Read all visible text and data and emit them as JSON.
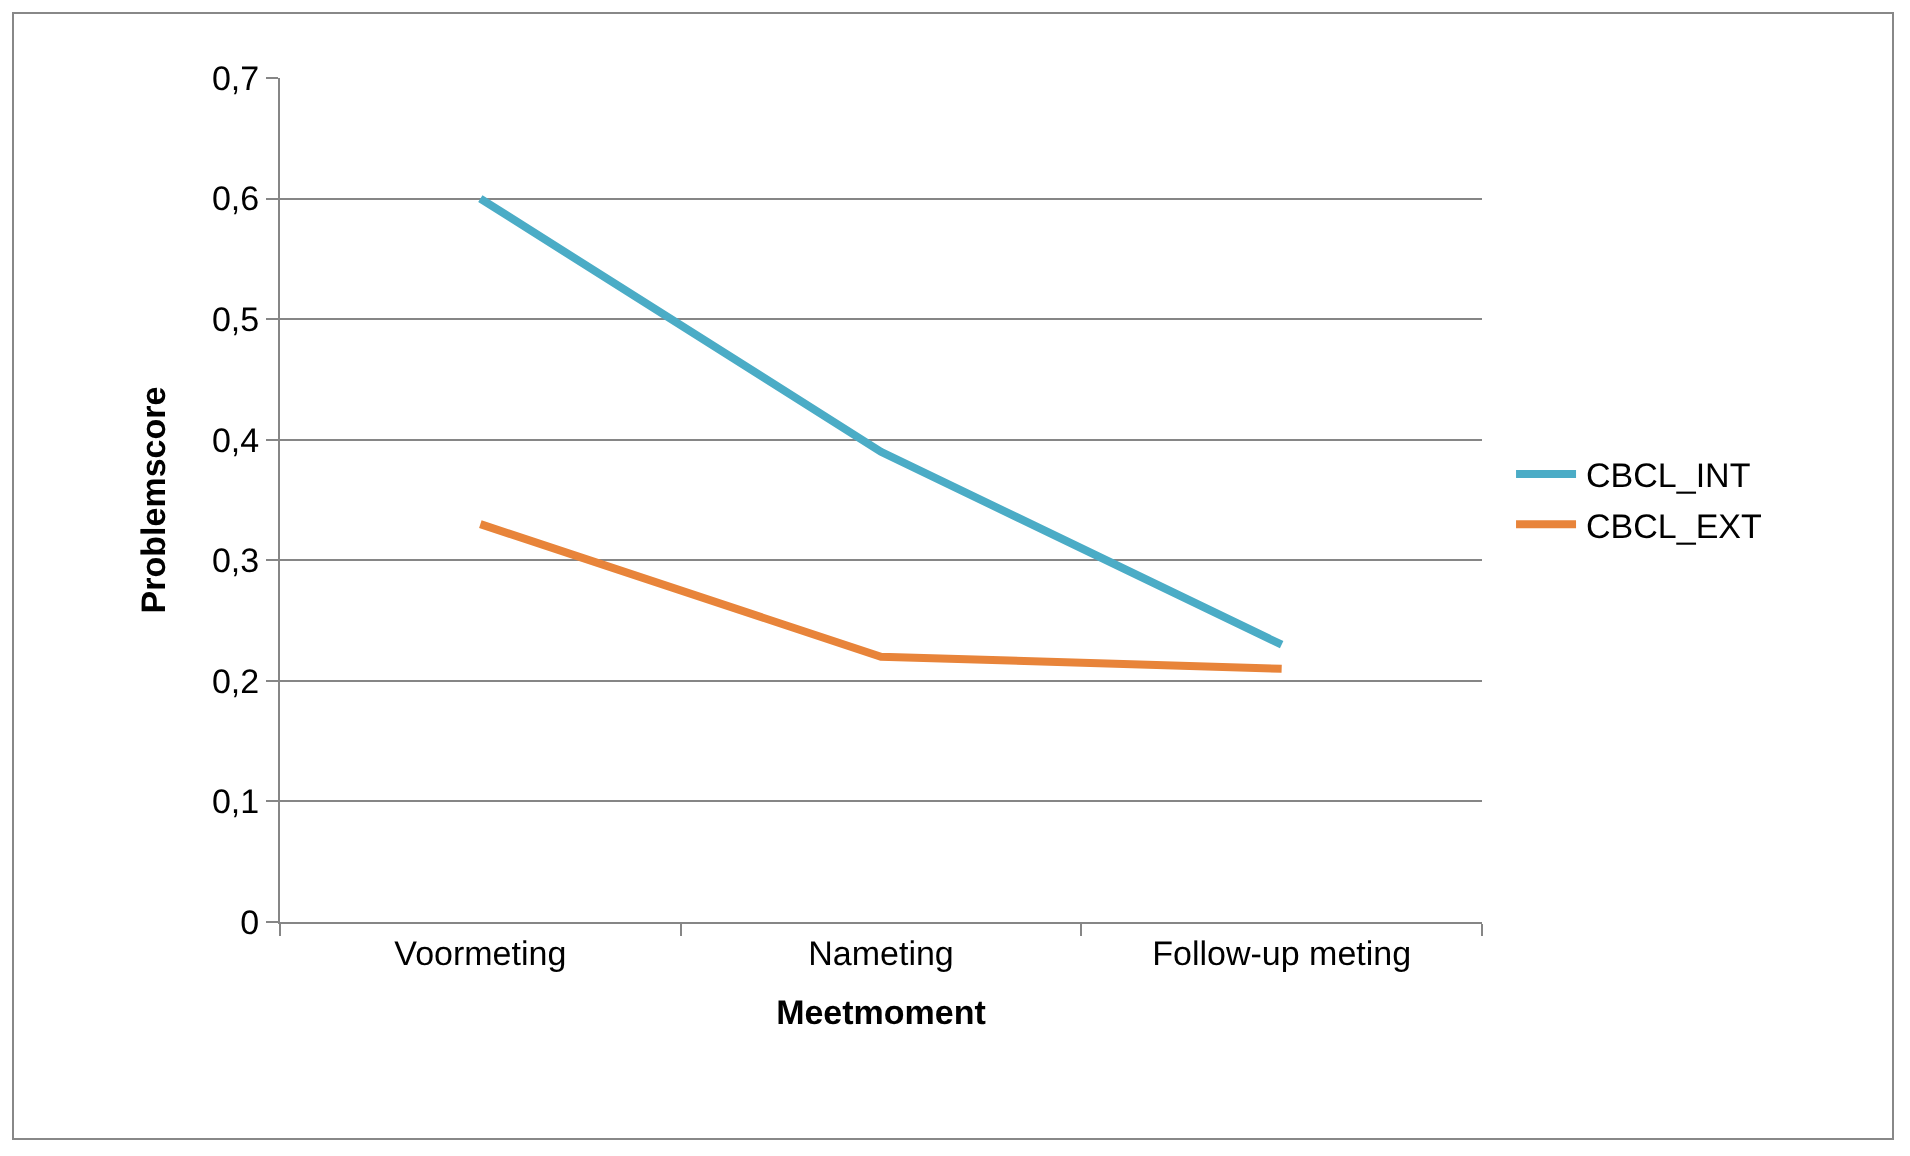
{
  "chart_data": {
    "type": "line",
    "xlabel": "Meetmoment",
    "ylabel": "Problemscore",
    "categories": [
      "Voormeting",
      "Nameting",
      "Follow-up meting"
    ],
    "series": [
      {
        "name": "CBCL_INT",
        "color": "#4bacc6",
        "values": [
          0.6,
          0.39,
          0.23
        ]
      },
      {
        "name": "CBCL_EXT",
        "color": "#e8843a",
        "values": [
          0.33,
          0.22,
          0.21
        ]
      }
    ],
    "ylim": [
      0,
      0.7
    ],
    "yticks": [
      {
        "value": 0,
        "label": "0"
      },
      {
        "value": 0.1,
        "label": "0,1"
      },
      {
        "value": 0.2,
        "label": "0,2"
      },
      {
        "value": 0.3,
        "label": "0,3"
      },
      {
        "value": 0.4,
        "label": "0,4"
      },
      {
        "value": 0.5,
        "label": "0,5"
      },
      {
        "value": 0.6,
        "label": "0,6"
      },
      {
        "value": 0.7,
        "label": "0,7"
      }
    ],
    "grid": "y",
    "legend": "right",
    "marker": "none",
    "line_style": "solid"
  }
}
